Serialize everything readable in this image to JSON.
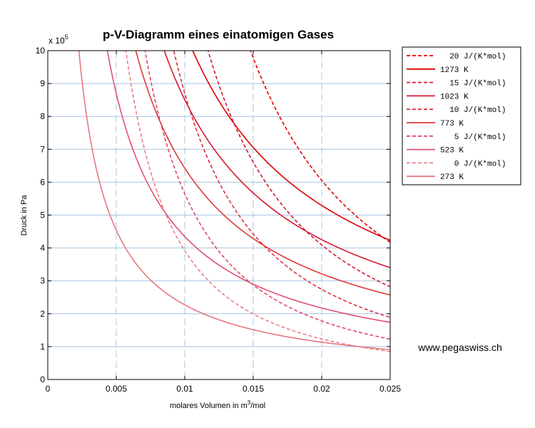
{
  "chart_data": {
    "type": "line",
    "title": "p-V-Diagramm eines einatomigen Gases",
    "xlabel": "molares Volumen in m",
    "xlabel_sup": "3",
    "xlabel_after": "/mol",
    "ylabel": "Druck in Pa",
    "y_multiplier": "x 10",
    "y_multiplier_exp": "5",
    "xlim": [
      0,
      0.025
    ],
    "ylim": [
      0,
      1000000
    ],
    "xticks": [
      0,
      0.005,
      0.01,
      0.015,
      0.02,
      0.025
    ],
    "xtick_labels": [
      "0",
      "0.005",
      "0.01",
      "0.015",
      "0.02",
      "0.025"
    ],
    "yticks": [
      0,
      100000,
      200000,
      300000,
      400000,
      500000,
      600000,
      700000,
      800000,
      900000,
      1000000
    ],
    "ytick_labels": [
      "0",
      "1",
      "2",
      "3",
      "4",
      "5",
      "6",
      "7",
      "8",
      "9",
      "10"
    ],
    "grid": true,
    "legend_position": "outside-right",
    "gas_constant": 8.314,
    "series": [
      {
        "name": "20 J/(K*mol)",
        "kind": "adiabat",
        "entropy": 20,
        "ref_volume": 0.0148,
        "ref_pressure": 1000000,
        "exponent": 1.6667,
        "color": "#e00000",
        "dash": true
      },
      {
        "name": "1273 K",
        "kind": "isotherm",
        "temperature": 1273,
        "color": "#e00000",
        "dash": false
      },
      {
        "name": "15 J/(K*mol)",
        "kind": "adiabat",
        "entropy": 15,
        "ref_volume": 0.0117,
        "ref_pressure": 1000000,
        "exponent": 1.6667,
        "color": "#d81830",
        "dash": true
      },
      {
        "name": "1023 K",
        "kind": "isotherm",
        "temperature": 1023,
        "color": "#d81830",
        "dash": false
      },
      {
        "name": "10 J/(K*mol)",
        "kind": "adiabat",
        "entropy": 10,
        "ref_volume": 0.0092,
        "ref_pressure": 1000000,
        "exponent": 1.6667,
        "color": "#dc3040",
        "dash": true
      },
      {
        "name": "773 K",
        "kind": "isotherm",
        "temperature": 773,
        "color": "#e03838",
        "dash": false
      },
      {
        "name": "5 J/(K*mol)",
        "kind": "adiabat",
        "entropy": 5,
        "ref_volume": 0.0071,
        "ref_pressure": 1000000,
        "exponent": 1.6667,
        "color": "#e04868",
        "dash": true
      },
      {
        "name": "523 K",
        "kind": "isotherm",
        "temperature": 523,
        "color": "#e05070",
        "dash": false
      },
      {
        "name": "0 J/(K*mol)",
        "kind": "adiabat",
        "entropy": 0,
        "ref_volume": 0.0057,
        "ref_pressure": 1000000,
        "exponent": 1.6667,
        "color": "#e88088",
        "dash": true
      },
      {
        "name": "273 K",
        "kind": "isotherm",
        "temperature": 273,
        "color": "#e87880",
        "dash": false
      }
    ]
  },
  "watermark": "www.pegaswiss.ch"
}
